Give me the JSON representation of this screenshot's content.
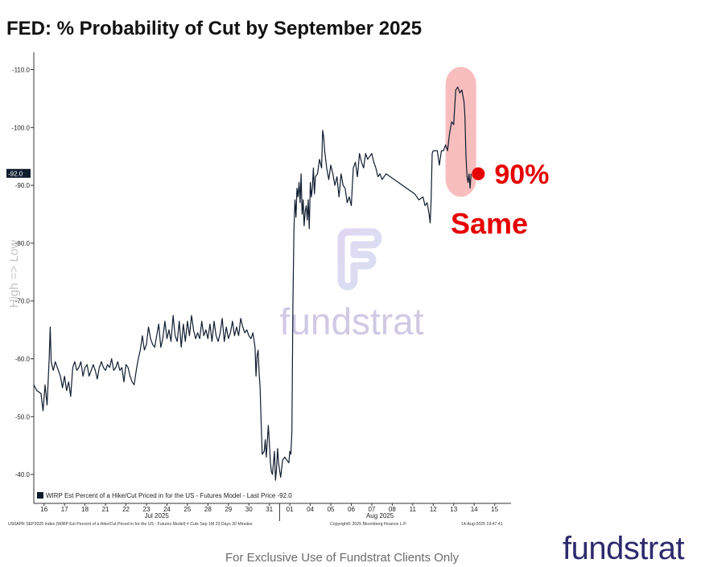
{
  "title": "FED: % Probability of Cut by September 2025",
  "ylabel": "High => Low",
  "footer_note": "For Exclusive Use of Fundstrat Clients Only",
  "logo_text": "fundstrat",
  "watermark_text": "fundstrat",
  "legend_text": "WIRP Est Percent of a Hike/Cut Priced in for the US - Futures Model - Last Price -92.0",
  "last_price_label": "-92.0",
  "bottom_left_note": "US0APR SEP2025 Index (WIRP Est Percent of a Hike/Cut Priced in for the US - Futures Model) # Cuts Sep 1M 23 Days 30 Minutes",
  "bottom_center_note": "Copyright© 2025 Bloomberg Finance L.P.",
  "bottom_right_note": "14-Aug-2025 19:47:41",
  "annotation_value": "90%",
  "annotation_note": "Same",
  "colors": {
    "line": "#0f1c2e",
    "highlight": "#f7b3b3",
    "annotation": "#e60000",
    "logo": "#2e2a6e",
    "watermark": "#c9c3df"
  },
  "chart_data": {
    "type": "line",
    "ylim": [
      -35,
      -113
    ],
    "yticks": [
      -40.0,
      -50.0,
      -60.0,
      -70.0,
      -80.0,
      -90.0,
      -100.0,
      -110.0
    ],
    "ytick_labels": [
      "-40.0",
      "-50.0",
      "-60.0",
      "-70.0",
      "-80.0",
      "-90.0",
      "-100.0",
      "-110.0"
    ],
    "xticks": [
      {
        "label": "16",
        "t": 0.5
      },
      {
        "label": "17",
        "t": 1.5
      },
      {
        "label": "18",
        "t": 2.5
      },
      {
        "label": "21",
        "t": 3.5
      },
      {
        "label": "22",
        "t": 4.5
      },
      {
        "label": "23",
        "t": 5.5
      },
      {
        "label": "24",
        "t": 6.5
      },
      {
        "label": "25",
        "t": 7.5
      },
      {
        "label": "28",
        "t": 8.5
      },
      {
        "label": "29",
        "t": 9.5
      },
      {
        "label": "30",
        "t": 10.5
      },
      {
        "label": "31",
        "t": 11.5
      },
      {
        "label": "01",
        "t": 12.5
      },
      {
        "label": "04",
        "t": 13.5
      },
      {
        "label": "05",
        "t": 14.5
      },
      {
        "label": "06",
        "t": 15.5
      },
      {
        "label": "07",
        "t": 16.5
      },
      {
        "label": "08",
        "t": 17.5
      },
      {
        "label": "11",
        "t": 18.5
      },
      {
        "label": "12",
        "t": 19.5
      },
      {
        "label": "13",
        "t": 20.5
      },
      {
        "label": "14",
        "t": 21.5
      },
      {
        "label": "15",
        "t": 22.5
      }
    ],
    "month_labels": [
      {
        "label": "Jul 2025",
        "t": 6.0
      },
      {
        "label": "Aug 2025",
        "t": 16.9
      }
    ],
    "month_separator_t": 12.0,
    "x_range": [
      0,
      23.3
    ],
    "series": [
      {
        "name": "WIRP Est Percent of a Hike/Cut Priced in for the US - Futures Model - Last Price",
        "points": [
          [
            0.0,
            -55.5
          ],
          [
            0.15,
            -54.5
          ],
          [
            0.35,
            -54.0
          ],
          [
            0.45,
            -51.0
          ],
          [
            0.55,
            -55.5
          ],
          [
            0.65,
            -52.0
          ],
          [
            0.75,
            -60.0
          ],
          [
            0.8,
            -65.5
          ],
          [
            0.85,
            -59.5
          ],
          [
            0.95,
            -58.0
          ],
          [
            1.05,
            -59.5
          ],
          [
            1.2,
            -58.0
          ],
          [
            1.3,
            -57.0
          ],
          [
            1.4,
            -55.0
          ],
          [
            1.5,
            -57.0
          ],
          [
            1.6,
            -54.5
          ],
          [
            1.7,
            -56.0
          ],
          [
            1.8,
            -53.5
          ],
          [
            1.9,
            -58.5
          ],
          [
            2.0,
            -59.5
          ],
          [
            2.1,
            -58.0
          ],
          [
            2.2,
            -58.5
          ],
          [
            2.3,
            -59.5
          ],
          [
            2.4,
            -57.0
          ],
          [
            2.5,
            -58.5
          ],
          [
            2.6,
            -59.0
          ],
          [
            2.7,
            -57.0
          ],
          [
            2.8,
            -58.0
          ],
          [
            2.9,
            -59.0
          ],
          [
            3.0,
            -58.0
          ],
          [
            3.1,
            -56.5
          ],
          [
            3.2,
            -58.5
          ],
          [
            3.3,
            -59.5
          ],
          [
            3.4,
            -58.5
          ],
          [
            3.5,
            -58.0
          ],
          [
            3.6,
            -59.0
          ],
          [
            3.7,
            -58.5
          ],
          [
            3.8,
            -60.0
          ],
          [
            3.9,
            -58.0
          ],
          [
            4.0,
            -58.5
          ],
          [
            4.1,
            -59.5
          ],
          [
            4.2,
            -58.0
          ],
          [
            4.3,
            -58.5
          ],
          [
            4.4,
            -56.0
          ],
          [
            4.5,
            -59.0
          ],
          [
            4.6,
            -58.5
          ],
          [
            4.7,
            -57.0
          ],
          [
            4.8,
            -56.0
          ],
          [
            4.9,
            -55.5
          ],
          [
            5.0,
            -58.0
          ],
          [
            5.1,
            -60.0
          ],
          [
            5.2,
            -61.5
          ],
          [
            5.3,
            -64.0
          ],
          [
            5.4,
            -61.5
          ],
          [
            5.5,
            -62.5
          ],
          [
            5.6,
            -65.5
          ],
          [
            5.7,
            -63.5
          ],
          [
            5.8,
            -62.5
          ],
          [
            5.9,
            -62.0
          ],
          [
            6.0,
            -64.0
          ],
          [
            6.1,
            -66.0
          ],
          [
            6.2,
            -62.0
          ],
          [
            6.3,
            -63.5
          ],
          [
            6.4,
            -66.5
          ],
          [
            6.5,
            -63.5
          ],
          [
            6.6,
            -65.0
          ],
          [
            6.7,
            -63.0
          ],
          [
            6.8,
            -67.5
          ],
          [
            6.9,
            -64.0
          ],
          [
            7.0,
            -63.0
          ],
          [
            7.1,
            -66.5
          ],
          [
            7.2,
            -62.0
          ],
          [
            7.3,
            -66.0
          ],
          [
            7.4,
            -63.0
          ],
          [
            7.5,
            -66.5
          ],
          [
            7.6,
            -64.0
          ],
          [
            7.7,
            -67.5
          ],
          [
            7.8,
            -65.0
          ],
          [
            7.9,
            -63.5
          ],
          [
            8.0,
            -64.5
          ],
          [
            8.1,
            -63.5
          ],
          [
            8.2,
            -66.5
          ],
          [
            8.3,
            -64.0
          ],
          [
            8.4,
            -65.0
          ],
          [
            8.5,
            -63.5
          ],
          [
            8.6,
            -66.0
          ],
          [
            8.7,
            -63.0
          ],
          [
            8.8,
            -66.5
          ],
          [
            8.9,
            -64.0
          ],
          [
            9.0,
            -63.0
          ],
          [
            9.1,
            -64.5
          ],
          [
            9.2,
            -67.0
          ],
          [
            9.3,
            -63.0
          ],
          [
            9.4,
            -65.5
          ],
          [
            9.5,
            -63.5
          ],
          [
            9.6,
            -64.5
          ],
          [
            9.7,
            -66.5
          ],
          [
            9.8,
            -64.0
          ],
          [
            9.9,
            -65.5
          ],
          [
            10.0,
            -64.0
          ],
          [
            10.1,
            -67.0
          ],
          [
            10.2,
            -65.5
          ],
          [
            10.3,
            -64.5
          ],
          [
            10.4,
            -65.0
          ],
          [
            10.5,
            -64.0
          ],
          [
            10.6,
            -63.5
          ],
          [
            10.7,
            -64.5
          ],
          [
            10.8,
            -62.0
          ],
          [
            10.85,
            -57.0
          ],
          [
            10.9,
            -60.5
          ],
          [
            10.95,
            -61.5
          ],
          [
            11.0,
            -57.5
          ],
          [
            11.05,
            -55.0
          ],
          [
            11.1,
            -49.0
          ],
          [
            11.15,
            -43.5
          ],
          [
            11.25,
            -44.0
          ],
          [
            11.3,
            -46.0
          ],
          [
            11.35,
            -43.0
          ],
          [
            11.45,
            -48.5
          ],
          [
            11.5,
            -45.5
          ],
          [
            11.55,
            -42.0
          ],
          [
            11.6,
            -40.5
          ],
          [
            11.65,
            -40.0
          ],
          [
            11.7,
            -42.0
          ],
          [
            11.75,
            -44.0
          ],
          [
            11.8,
            -39.0
          ],
          [
            11.85,
            -41.0
          ],
          [
            11.9,
            -44.5
          ],
          [
            11.95,
            -42.0
          ],
          [
            12.05,
            -39.5
          ],
          [
            12.15,
            -42.5
          ],
          [
            12.25,
            -43.0
          ],
          [
            12.35,
            -42.5
          ],
          [
            12.45,
            -42.0
          ],
          [
            12.5,
            -44.0
          ],
          [
            12.55,
            -43.5
          ],
          [
            12.6,
            -47.5
          ],
          [
            12.65,
            -70.0
          ],
          [
            12.7,
            -82.0
          ],
          [
            12.75,
            -87.5
          ],
          [
            12.8,
            -84.5
          ],
          [
            12.85,
            -89.5
          ],
          [
            12.9,
            -88.0
          ],
          [
            12.95,
            -90.5
          ],
          [
            13.0,
            -87.0
          ],
          [
            13.05,
            -92.0
          ],
          [
            13.1,
            -85.0
          ],
          [
            13.15,
            -87.5
          ],
          [
            13.2,
            -83.0
          ],
          [
            13.25,
            -85.5
          ],
          [
            13.3,
            -86.5
          ],
          [
            13.35,
            -84.0
          ],
          [
            13.4,
            -87.5
          ],
          [
            13.45,
            -82.5
          ],
          [
            13.5,
            -90.5
          ],
          [
            13.55,
            -88.0
          ],
          [
            13.6,
            -89.5
          ],
          [
            13.65,
            -93.0
          ],
          [
            13.7,
            -88.5
          ],
          [
            13.75,
            -91.5
          ],
          [
            13.85,
            -92.0
          ],
          [
            13.95,
            -94.5
          ],
          [
            14.05,
            -93.0
          ],
          [
            14.1,
            -99.5
          ],
          [
            14.15,
            -98.5
          ],
          [
            14.2,
            -96.0
          ],
          [
            14.3,
            -93.0
          ],
          [
            14.4,
            -91.0
          ],
          [
            14.5,
            -93.5
          ],
          [
            14.6,
            -92.0
          ],
          [
            14.7,
            -90.0
          ],
          [
            14.8,
            -91.5
          ],
          [
            14.9,
            -88.0
          ],
          [
            15.0,
            -92.0
          ],
          [
            15.1,
            -90.0
          ],
          [
            15.2,
            -89.5
          ],
          [
            15.3,
            -87.0
          ],
          [
            15.4,
            -88.0
          ],
          [
            15.5,
            -86.5
          ],
          [
            15.6,
            -93.0
          ],
          [
            15.7,
            -94.0
          ],
          [
            15.8,
            -91.5
          ],
          [
            15.9,
            -95.5
          ],
          [
            16.0,
            -94.0
          ],
          [
            16.1,
            -93.0
          ],
          [
            16.2,
            -95.5
          ],
          [
            16.3,
            -94.5
          ],
          [
            16.4,
            -95.0
          ],
          [
            16.5,
            -95.5
          ],
          [
            16.6,
            -94.0
          ],
          [
            16.7,
            -93.0
          ],
          [
            16.8,
            -91.5
          ],
          [
            16.9,
            -92.0
          ],
          [
            17.0,
            -91.0
          ],
          [
            17.2,
            -92.0
          ],
          [
            17.4,
            -91.5
          ],
          [
            17.6,
            -91.0
          ],
          [
            17.8,
            -90.5
          ],
          [
            18.0,
            -90.0
          ],
          [
            18.2,
            -89.5
          ],
          [
            18.4,
            -89.0
          ],
          [
            18.6,
            -88.5
          ],
          [
            18.8,
            -87.5
          ],
          [
            19.0,
            -88.0
          ],
          [
            19.1,
            -86.5
          ],
          [
            19.2,
            -87.0
          ],
          [
            19.3,
            -85.0
          ],
          [
            19.35,
            -83.5
          ],
          [
            19.4,
            -87.5
          ],
          [
            19.45,
            -95.5
          ],
          [
            19.5,
            -96.0
          ],
          [
            19.6,
            -96.0
          ],
          [
            19.7,
            -96.0
          ],
          [
            19.8,
            -93.5
          ],
          [
            19.9,
            -96.0
          ],
          [
            20.0,
            -96.0
          ],
          [
            20.1,
            -97.0
          ],
          [
            20.2,
            -96.0
          ],
          [
            20.3,
            -99.0
          ],
          [
            20.4,
            -101.0
          ],
          [
            20.5,
            -100.5
          ],
          [
            20.6,
            -106.5
          ],
          [
            20.7,
            -107.0
          ],
          [
            20.8,
            -106.0
          ],
          [
            20.9,
            -106.5
          ],
          [
            21.0,
            -104.5
          ],
          [
            21.05,
            -102.0
          ],
          [
            21.1,
            -95.0
          ],
          [
            21.15,
            -91.5
          ],
          [
            21.2,
            -90.5
          ],
          [
            21.25,
            -92.0
          ],
          [
            21.3,
            -89.5
          ],
          [
            21.35,
            -92.0
          ]
        ]
      }
    ]
  }
}
